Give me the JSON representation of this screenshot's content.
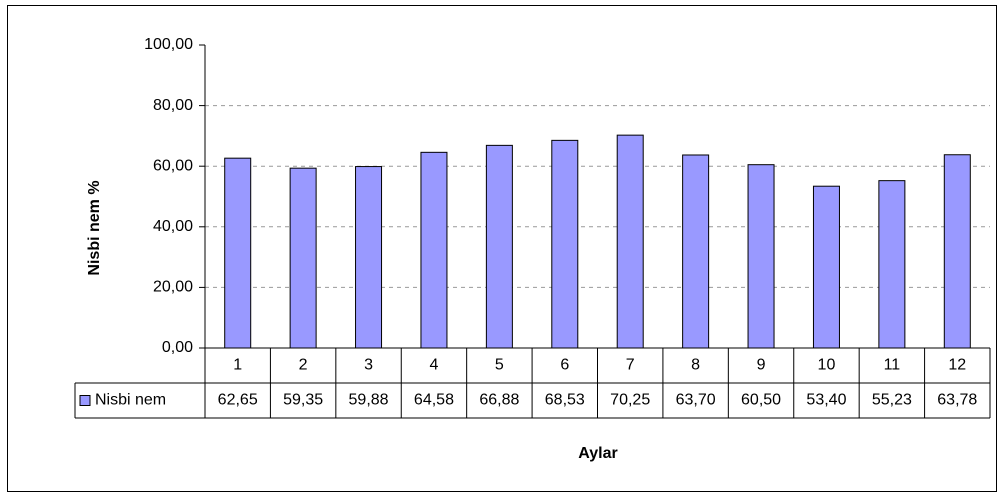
{
  "chart_data": {
    "type": "bar",
    "categories": [
      "1",
      "2",
      "3",
      "4",
      "5",
      "6",
      "7",
      "8",
      "9",
      "10",
      "11",
      "12"
    ],
    "series": [
      {
        "name": "Nisbi nem",
        "color": "#9999ff",
        "values": [
          62.65,
          59.35,
          59.88,
          64.58,
          66.88,
          68.53,
          70.25,
          63.7,
          60.5,
          53.4,
          55.23,
          63.78
        ],
        "value_labels": [
          "62,65",
          "59,35",
          "59,88",
          "64,58",
          "66,88",
          "68,53",
          "70,25",
          "63,70",
          "60,50",
          "53,40",
          "55,23",
          "63,78"
        ]
      }
    ],
    "ylim": [
      0,
      100
    ],
    "yticks": [
      {
        "value": 0,
        "label": "0,00"
      },
      {
        "value": 20,
        "label": "20,00"
      },
      {
        "value": 40,
        "label": "40,00"
      },
      {
        "value": 60,
        "label": "60,00"
      },
      {
        "value": 80,
        "label": "80,00"
      },
      {
        "value": 100,
        "label": "100,00"
      }
    ],
    "y_label": "Nisbi nem %",
    "x_label": "Aylar",
    "grid": true
  }
}
